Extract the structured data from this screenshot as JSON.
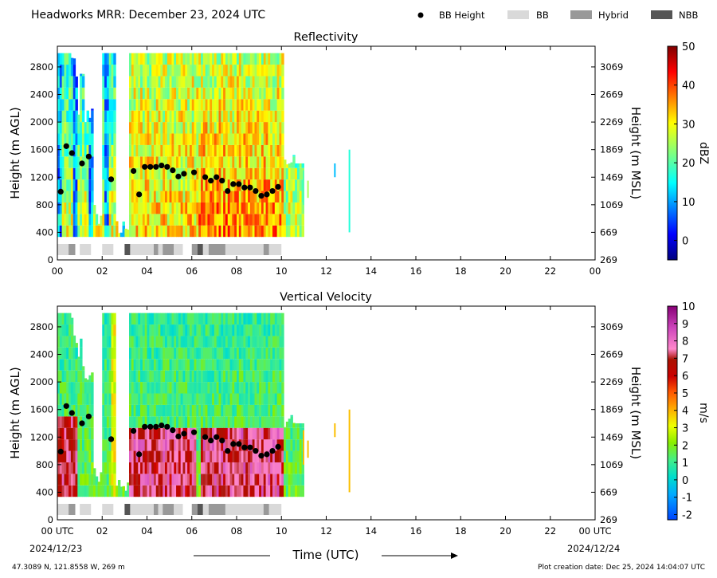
{
  "header": {
    "title": "Headworks MRR:  December 23, 2024 UTC",
    "legend": [
      {
        "label": "BB Height",
        "kind": "dot",
        "color": "#000000"
      },
      {
        "label": "BB",
        "kind": "box",
        "color": "#d9d9d9"
      },
      {
        "label": "Hybrid",
        "kind": "box",
        "color": "#999999"
      },
      {
        "label": "NBB",
        "kind": "box",
        "color": "#555555"
      }
    ]
  },
  "footer": {
    "coords": "47.3089 N, 121.8558 W, 269 m",
    "created": "Plot creation date: Dec 25, 2024 14:04:07 UTC",
    "xlabel": "Time (UTC)",
    "start_date": "2024/12/23",
    "end_date": "2024/12/24"
  },
  "chart_data": [
    {
      "type": "heatmap",
      "title": "Reflectivity",
      "ylabel": "Height (m AGL)",
      "y2label": "Height (m MSL)",
      "xlim": [
        0,
        24
      ],
      "ylim": [
        0,
        3100
      ],
      "x_ticks": [
        "00",
        "02",
        "04",
        "06",
        "08",
        "10",
        "12",
        "14",
        "16",
        "18",
        "20",
        "22",
        "00"
      ],
      "y_ticks": [
        "0",
        "400",
        "800",
        "1200",
        "1600",
        "2000",
        "2400",
        "2800"
      ],
      "y2_ticks": [
        "269",
        "669",
        "1069",
        "1469",
        "1869",
        "2269",
        "2669",
        "3069"
      ],
      "colorbar": {
        "label": "dBZ",
        "min": -5,
        "max": 50,
        "ticks": [
          "0",
          "10",
          "20",
          "30",
          "40",
          "50"
        ]
      },
      "bb_height": {
        "x": [
          0.15,
          0.4,
          0.65,
          1.1,
          1.4,
          2.4,
          3.4,
          3.65,
          3.9,
          4.15,
          4.4,
          4.65,
          4.9,
          5.15,
          5.4,
          5.65,
          6.1,
          6.6,
          6.85,
          7.1,
          7.35,
          7.6,
          7.85,
          8.1,
          8.35,
          8.6,
          8.85,
          9.1,
          9.35,
          9.6,
          9.85
        ],
        "y": [
          990,
          1650,
          1550,
          1400,
          1500,
          1170,
          1290,
          950,
          1350,
          1350,
          1350,
          1370,
          1350,
          1300,
          1210,
          1250,
          1270,
          1200,
          1150,
          1200,
          1150,
          1000,
          1100,
          1100,
          1050,
          1050,
          1000,
          930,
          950,
          1000,
          1060
        ]
      }
    },
    {
      "type": "heatmap",
      "title": "Vertical Velocity",
      "ylabel": "Height (m AGL)",
      "y2label": "Height (m MSL)",
      "xlim": [
        0,
        24
      ],
      "ylim": [
        0,
        3100
      ],
      "x_ticks": [
        "00 UTC",
        "02",
        "04",
        "06",
        "08",
        "10",
        "12",
        "14",
        "16",
        "18",
        "20",
        "22",
        "00 UTC"
      ],
      "y_ticks": [
        "0",
        "400",
        "800",
        "1200",
        "1600",
        "2000",
        "2400",
        "2800"
      ],
      "y2_ticks": [
        "269",
        "669",
        "1069",
        "1469",
        "1869",
        "2269",
        "2669",
        "3069"
      ],
      "colorbar": {
        "label": "m/s",
        "min": -2.3,
        "max": 10,
        "ticks": [
          "-2",
          "-1",
          "0",
          "1",
          "2",
          "3",
          "4",
          "5",
          "6",
          "7",
          "8",
          "9",
          "10"
        ]
      },
      "bb_height": {
        "x": [
          0.15,
          0.4,
          0.65,
          1.1,
          1.4,
          2.4,
          3.4,
          3.65,
          3.9,
          4.15,
          4.4,
          4.65,
          4.9,
          5.15,
          5.4,
          5.65,
          6.1,
          6.6,
          6.85,
          7.1,
          7.35,
          7.6,
          7.85,
          8.1,
          8.35,
          8.6,
          8.85,
          9.1,
          9.35,
          9.6,
          9.85
        ],
        "y": [
          990,
          1650,
          1550,
          1400,
          1500,
          1170,
          1290,
          950,
          1350,
          1350,
          1350,
          1370,
          1350,
          1300,
          1210,
          1250,
          1270,
          1200,
          1150,
          1200,
          1150,
          1000,
          1100,
          1100,
          1050,
          1050,
          1000,
          930,
          950,
          1000,
          1060
        ]
      }
    }
  ],
  "bb_type_bar": [
    {
      "x0": 0.0,
      "x1": 0.5,
      "kind": "BB"
    },
    {
      "x0": 0.5,
      "x1": 0.8,
      "kind": "Hybrid"
    },
    {
      "x0": 1.0,
      "x1": 1.5,
      "kind": "BB"
    },
    {
      "x0": 2.0,
      "x1": 2.5,
      "kind": "BB"
    },
    {
      "x0": 3.0,
      "x1": 3.25,
      "kind": "NBB"
    },
    {
      "x0": 3.25,
      "x1": 4.3,
      "kind": "BB"
    },
    {
      "x0": 4.3,
      "x1": 4.5,
      "kind": "Hybrid"
    },
    {
      "x0": 4.5,
      "x1": 4.7,
      "kind": "BB"
    },
    {
      "x0": 4.7,
      "x1": 5.2,
      "kind": "Hybrid"
    },
    {
      "x0": 5.2,
      "x1": 5.6,
      "kind": "BB"
    },
    {
      "x0": 6.0,
      "x1": 6.25,
      "kind": "Hybrid"
    },
    {
      "x0": 6.25,
      "x1": 6.5,
      "kind": "NBB"
    },
    {
      "x0": 6.5,
      "x1": 6.75,
      "kind": "BB"
    },
    {
      "x0": 6.75,
      "x1": 7.5,
      "kind": "Hybrid"
    },
    {
      "x0": 7.5,
      "x1": 9.2,
      "kind": "BB"
    },
    {
      "x0": 9.2,
      "x1": 9.45,
      "kind": "Hybrid"
    },
    {
      "x0": 9.45,
      "x1": 10.0,
      "kind": "BB"
    }
  ]
}
